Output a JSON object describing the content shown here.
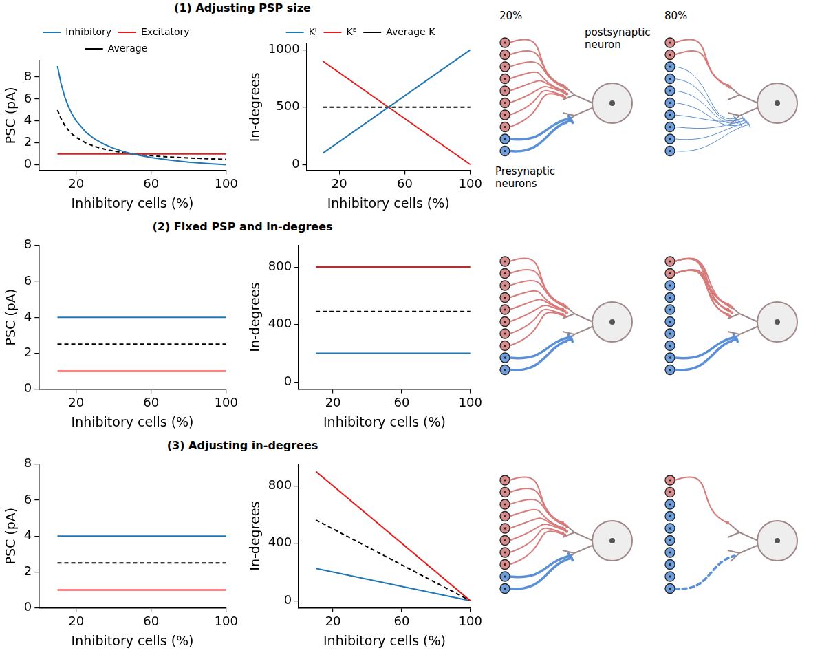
{
  "chart_data": [
    {
      "type": "line",
      "xlabel": "Inhibitory cells (%)",
      "ylabel": "PSC (pA)",
      "x": [
        10,
        12,
        14,
        16,
        18,
        20,
        25,
        30,
        35,
        40,
        45,
        50,
        60,
        70,
        80,
        90,
        100
      ],
      "series": [
        {
          "name": "Inhibitory",
          "color": "#1f77b4",
          "line_style": "solid",
          "values": [
            9,
            7.33,
            6.14,
            5.25,
            4.56,
            4,
            3,
            2.33,
            1.86,
            1.5,
            1.22,
            1,
            0.67,
            0.43,
            0.25,
            0.11,
            0
          ]
        },
        {
          "name": "Excitatory",
          "color": "#e41a1c",
          "line_style": "solid",
          "values": [
            1,
            1,
            1,
            1,
            1,
            1,
            1,
            1,
            1,
            1,
            1,
            1,
            1,
            1,
            1,
            1,
            1
          ]
        },
        {
          "name": "Average",
          "color": "#000000",
          "line_style": "dashed",
          "values": [
            5,
            4.17,
            3.57,
            3.13,
            2.78,
            2.5,
            2,
            1.67,
            1.43,
            1.25,
            1.11,
            1,
            0.83,
            0.71,
            0.63,
            0.56,
            0.5
          ]
        }
      ],
      "xlim": [
        0,
        100
      ],
      "xticks": [
        20,
        60,
        100
      ],
      "ylim": [
        -0.5,
        9.5
      ],
      "yticks": [
        0,
        2,
        4,
        6,
        8
      ],
      "grid": false,
      "legend": "top"
    },
    {
      "type": "line",
      "xlabel": "Inhibitory cells (%)",
      "ylabel": "In-degrees",
      "x": [
        10,
        100
      ],
      "series": [
        {
          "name": "Kᴵ",
          "color": "#1f77b4",
          "line_style": "solid",
          "values": [
            100,
            1000
          ]
        },
        {
          "name": "Kᴱ",
          "color": "#e41a1c",
          "line_style": "solid",
          "values": [
            900,
            0
          ]
        },
        {
          "name": "Average K",
          "color": "#000000",
          "line_style": "dashed",
          "values": [
            500,
            500
          ]
        }
      ],
      "xlim": [
        0,
        100
      ],
      "xticks": [
        20,
        60,
        100
      ],
      "ylim": [
        -50,
        1050
      ],
      "yticks": [
        0,
        500,
        1000
      ],
      "grid": false,
      "legend": "top"
    },
    {
      "type": "line",
      "xlabel": "Inhibitory cells (%)",
      "ylabel": "PSC (pA)",
      "x": [
        10,
        100
      ],
      "series": [
        {
          "color": "#1f77b4",
          "line_style": "solid",
          "values": [
            4,
            4
          ]
        },
        {
          "color": "#e41a1c",
          "line_style": "solid",
          "values": [
            1,
            1
          ]
        },
        {
          "color": "#000000",
          "line_style": "dashed",
          "values": [
            2.5,
            2.5
          ]
        }
      ],
      "xlim": [
        0,
        100
      ],
      "xticks": [
        20,
        60,
        100
      ],
      "ylim": [
        0,
        8
      ],
      "yticks": [
        0,
        2,
        4,
        6,
        8
      ],
      "grid": false
    },
    {
      "type": "line",
      "xlabel": "Inhibitory cells (%)",
      "ylabel": "In-degrees",
      "x": [
        10,
        100
      ],
      "series": [
        {
          "color": "#e41a1c",
          "line_style": "solid",
          "values": [
            800,
            800
          ]
        },
        {
          "color": "#000000",
          "line_style": "dashed",
          "values": [
            490,
            490
          ]
        },
        {
          "color": "#1f77b4",
          "line_style": "solid",
          "values": [
            200,
            200
          ]
        }
      ],
      "xlim": [
        0,
        100
      ],
      "xticks": [
        20,
        60,
        100
      ],
      "ylim": [
        -50,
        950
      ],
      "yticks": [
        0,
        400,
        800
      ],
      "grid": false
    },
    {
      "type": "line",
      "xlabel": "Inhibitory cells (%)",
      "ylabel": "PSC (pA)",
      "x": [
        10,
        100
      ],
      "series": [
        {
          "color": "#1f77b4",
          "line_style": "solid",
          "values": [
            4,
            4
          ]
        },
        {
          "color": "#e41a1c",
          "line_style": "solid",
          "values": [
            1,
            1
          ]
        },
        {
          "color": "#000000",
          "line_style": "dashed",
          "values": [
            2.5,
            2.5
          ]
        }
      ],
      "xlim": [
        0,
        100
      ],
      "xticks": [
        20,
        60,
        100
      ],
      "ylim": [
        0,
        8
      ],
      "yticks": [
        0,
        2,
        4,
        6,
        8
      ],
      "grid": false
    },
    {
      "type": "line",
      "xlabel": "Inhibitory cells (%)",
      "ylabel": "In-degrees",
      "x": [
        10,
        100
      ],
      "series": [
        {
          "color": "#e41a1c",
          "line_style": "solid",
          "values": [
            900,
            0
          ]
        },
        {
          "color": "#000000",
          "line_style": "dashed",
          "values": [
            562,
            0
          ]
        },
        {
          "color": "#1f77b4",
          "line_style": "solid",
          "values": [
            225,
            0
          ]
        }
      ],
      "xlim": [
        0,
        100
      ],
      "xticks": [
        20,
        60,
        100
      ],
      "ylim": [
        -50,
        950
      ],
      "yticks": [
        0,
        400,
        800
      ],
      "grid": false
    }
  ],
  "panel_titles": [
    "(1) Adjusting PSP size",
    "(2) Fixed PSP and in-degrees",
    "(3) Adjusting in-degrees"
  ],
  "diagrams": [
    [
      {
        "label": "20%",
        "excitatory": 8,
        "inhibitory": 2,
        "excitatory_synapses": 8,
        "inhibitory_synapses": 2,
        "inhibitory_style": "thick",
        "postsynaptic_label": "postsynaptic neuron",
        "presynaptic_label": "Presynaptic neurons"
      },
      {
        "label": "80%",
        "excitatory": 2,
        "inhibitory": 8,
        "excitatory_synapses": 2,
        "inhibitory_synapses": 8,
        "inhibitory_style": "thin"
      }
    ],
    [
      {
        "excitatory": 8,
        "inhibitory": 2,
        "excitatory_synapses": 8,
        "inhibitory_synapses": 2,
        "inhibitory_style": "thick"
      },
      {
        "excitatory": 2,
        "inhibitory": 8,
        "excitatory_synapses": 8,
        "inhibitory_synapses": 2,
        "inhibitory_style": "thick"
      }
    ],
    [
      {
        "excitatory": 8,
        "inhibitory": 2,
        "excitatory_synapses": 8,
        "inhibitory_synapses": 2,
        "inhibitory_style": "thick"
      },
      {
        "excitatory": 2,
        "inhibitory": 8,
        "excitatory_synapses": 1,
        "inhibitory_synapses": 1,
        "inhibitory_style": "dashed"
      }
    ]
  ]
}
